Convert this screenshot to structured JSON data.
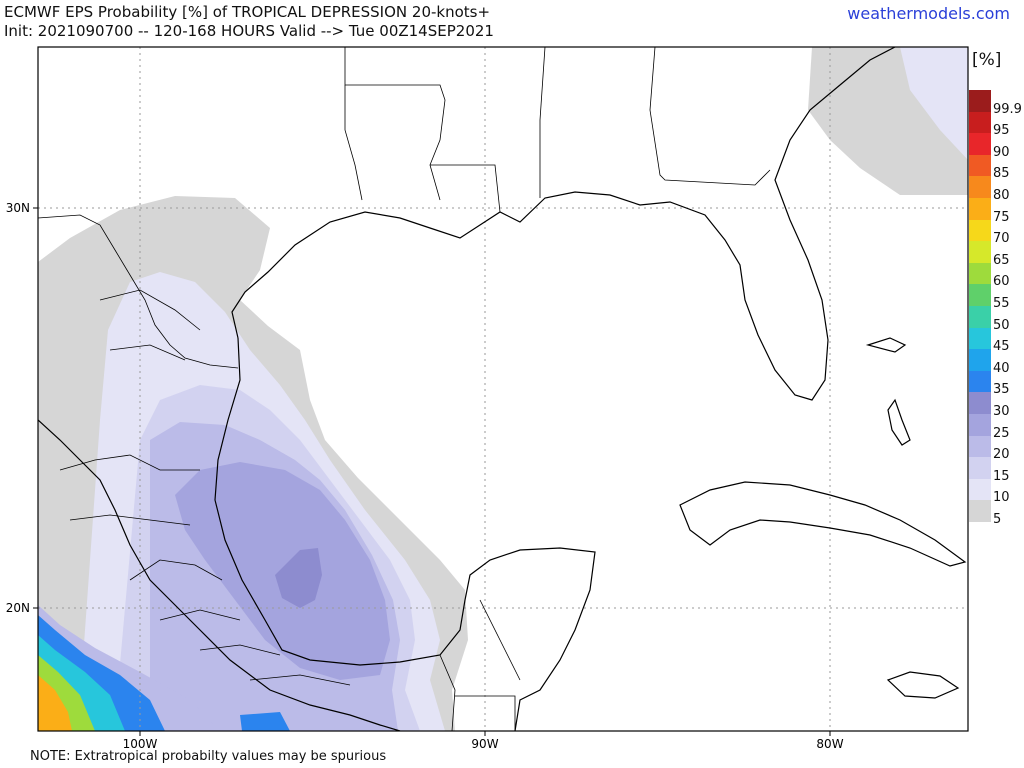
{
  "header": {
    "title_line1": "ECMWF EPS Probability [%] of TROPICAL DEPRESSION 20-knots+",
    "title_line2": "Init: 2021090700 -- 120-168 HOURS Valid --> Tue 00Z14SEP2021",
    "site": "weathermodels.com"
  },
  "footer": {
    "note": "NOTE: Extratropical probabilty values may be spurious"
  },
  "map": {
    "lon_labels": [
      "100W",
      "90W",
      "80W"
    ],
    "lat_labels": [
      "30N",
      "20N"
    ]
  },
  "colorbar": {
    "unit": "[%]",
    "levels": [
      {
        "label": "99.9",
        "color": "#9b1c1c"
      },
      {
        "label": "95",
        "color": "#c81e1e"
      },
      {
        "label": "90",
        "color": "#e8262a"
      },
      {
        "label": "85",
        "color": "#f05a23"
      },
      {
        "label": "80",
        "color": "#f7891c"
      },
      {
        "label": "75",
        "color": "#fbae17"
      },
      {
        "label": "70",
        "color": "#f6d81a"
      },
      {
        "label": "65",
        "color": "#d6e82a"
      },
      {
        "label": "60",
        "color": "#9edb3c"
      },
      {
        "label": "55",
        "color": "#5fd06a"
      },
      {
        "label": "50",
        "color": "#3ad0a8"
      },
      {
        "label": "45",
        "color": "#27c6dc"
      },
      {
        "label": "40",
        "color": "#1fa4ec"
      },
      {
        "label": "35",
        "color": "#2b84ee"
      },
      {
        "label": "30",
        "color": "#8d8ccf"
      },
      {
        "label": "25",
        "color": "#a4a4de"
      },
      {
        "label": "20",
        "color": "#bbbbe8"
      },
      {
        "label": "15",
        "color": "#d2d2f0"
      },
      {
        "label": "10",
        "color": "#e4e4f6"
      },
      {
        "label": "5",
        "color": "#d6d6d6"
      }
    ]
  }
}
